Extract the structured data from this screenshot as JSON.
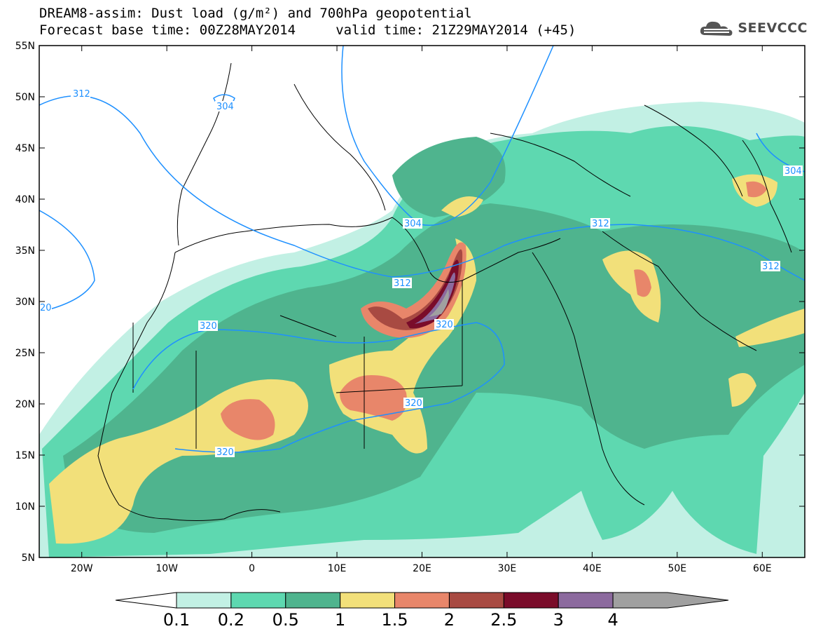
{
  "title": {
    "line1": "DREAM8-assim: Dust load (g/m²) and 700hPa geopotential",
    "line2": "Forecast base time: 00Z28MAY2014     valid time: 21Z29MAY2014 (+45)"
  },
  "logo": {
    "text": "SEEVCCC",
    "icon": "cloud-icon"
  },
  "axes": {
    "lat_ticks": [
      "55N",
      "50N",
      "45N",
      "40N",
      "35N",
      "30N",
      "25N",
      "20N",
      "15N",
      "10N",
      "5N"
    ],
    "lon_ticks": [
      "20W",
      "10W",
      "0",
      "10E",
      "20E",
      "30E",
      "40E",
      "50E",
      "60E"
    ],
    "lat_range": [
      5,
      55
    ],
    "lon_range": [
      -25,
      65
    ]
  },
  "colorbar": {
    "labels": [
      "0.1",
      "0.2",
      "0.5",
      "1",
      "1.5",
      "2",
      "2.5",
      "3",
      "4"
    ],
    "colors": [
      "#c2f0e4",
      "#5ed8b0",
      "#4fb48e",
      "#f2e07a",
      "#e8866a",
      "#a84a42",
      "#7a0c2a",
      "#8c6a9e",
      "#a0a0a0"
    ]
  },
  "contours": [
    {
      "value": "312",
      "labels": [
        "312",
        "312",
        "312",
        "312"
      ]
    },
    {
      "value": "304",
      "labels": [
        "304",
        "304",
        "304"
      ]
    },
    {
      "value": "320",
      "labels": [
        "320",
        "320",
        "320",
        "320"
      ]
    },
    {
      "value": "20",
      "labels": [
        "20"
      ]
    }
  ]
}
